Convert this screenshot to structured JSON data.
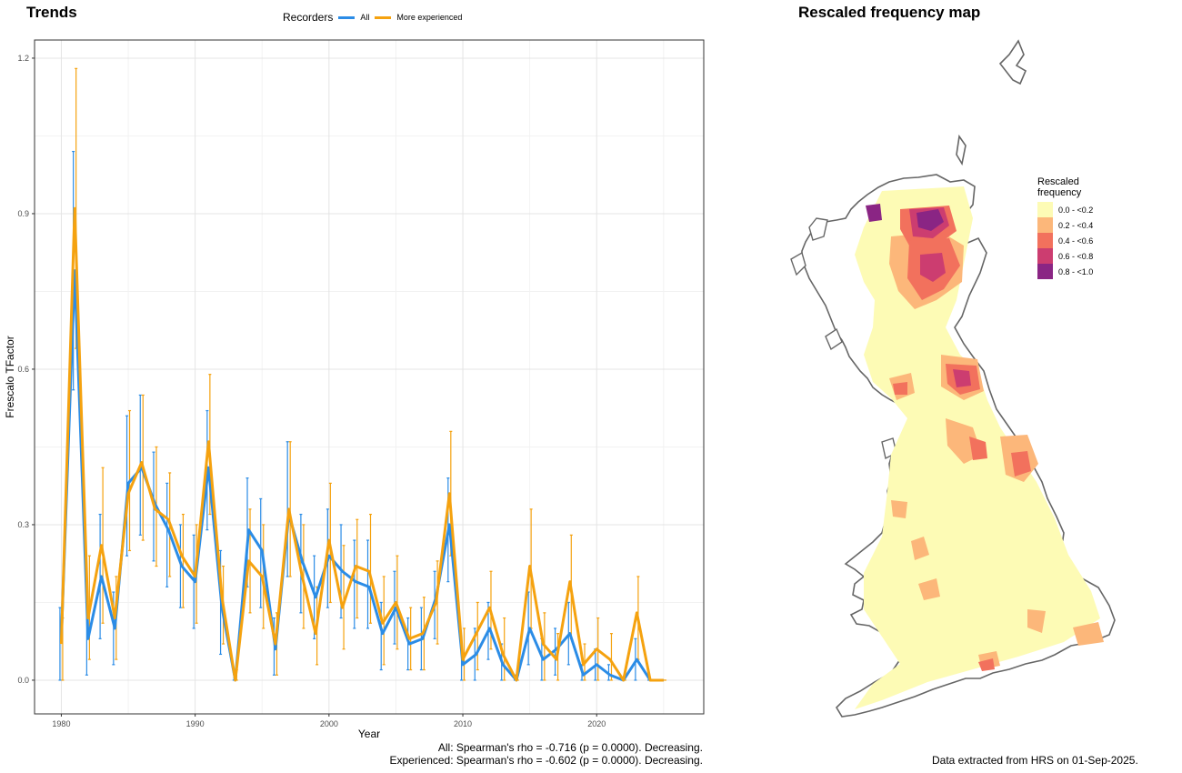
{
  "trends": {
    "title": "Trends",
    "legend_title": "Recorders",
    "stats_line1": "All: Spearman's rho = -0.716 (p = 0.0000). Decreasing.",
    "stats_line2": "Experienced: Spearman's rho = -0.602 (p = 0.0000). Decreasing."
  },
  "chart_data": {
    "type": "line",
    "xlabel": "Year",
    "ylabel": "Frescalo TFactor",
    "xlim": [
      1978,
      2028
    ],
    "ylim": [
      -0.065,
      1.235
    ],
    "x_ticks": [
      1980,
      1990,
      2000,
      2010,
      2020
    ],
    "y_ticks": [
      0.0,
      0.3,
      0.6,
      0.9,
      1.2
    ],
    "y_tick_labels": [
      "0.0",
      "0.3",
      "0.6",
      "0.9",
      "1.2"
    ],
    "grid": true,
    "legend_position": "top",
    "x": [
      1980,
      1981,
      1982,
      1983,
      1984,
      1985,
      1986,
      1987,
      1988,
      1989,
      1990,
      1991,
      1992,
      1993,
      1994,
      1995,
      1996,
      1997,
      1998,
      1999,
      2000,
      2001,
      2002,
      2003,
      2004,
      2005,
      2006,
      2007,
      2008,
      2009,
      2010,
      2011,
      2012,
      2013,
      2014,
      2015,
      2016,
      2017,
      2018,
      2019,
      2020,
      2021,
      2022,
      2023,
      2024,
      2025
    ],
    "series": [
      {
        "name": "All",
        "color": "#2b8ce6",
        "values": [
          0.08,
          0.79,
          0.08,
          0.2,
          0.1,
          0.38,
          0.41,
          0.34,
          0.29,
          0.22,
          0.19,
          0.41,
          0.14,
          0.0,
          0.29,
          0.25,
          0.06,
          0.32,
          0.23,
          0.16,
          0.24,
          0.21,
          0.19,
          0.18,
          0.09,
          0.14,
          0.07,
          0.08,
          0.16,
          0.3,
          0.03,
          0.05,
          0.1,
          0.03,
          0.0,
          0.1,
          0.04,
          0.06,
          0.09,
          0.01,
          0.03,
          0.01,
          0.0,
          0.04,
          0.0,
          0.0
        ],
        "lower": [
          0.0,
          0.56,
          0.01,
          0.08,
          0.03,
          0.24,
          0.28,
          0.23,
          0.18,
          0.14,
          0.1,
          0.29,
          0.05,
          0.0,
          0.18,
          0.14,
          0.01,
          0.2,
          0.13,
          0.08,
          0.14,
          0.12,
          0.1,
          0.1,
          0.02,
          0.07,
          0.02,
          0.02,
          0.08,
          0.19,
          0.0,
          0.0,
          0.04,
          0.0,
          0.0,
          0.03,
          0.0,
          0.01,
          0.03,
          0.0,
          0.0,
          0.0,
          0.0,
          0.0,
          0.0,
          0.0
        ],
        "upper": [
          0.14,
          1.02,
          0.15,
          0.32,
          0.17,
          0.51,
          0.55,
          0.44,
          0.38,
          0.3,
          0.28,
          0.52,
          0.25,
          0.02,
          0.39,
          0.35,
          0.12,
          0.46,
          0.32,
          0.24,
          0.33,
          0.3,
          0.27,
          0.27,
          0.15,
          0.21,
          0.12,
          0.14,
          0.21,
          0.39,
          0.07,
          0.1,
          0.15,
          0.07,
          0.01,
          0.17,
          0.08,
          0.1,
          0.15,
          0.03,
          0.06,
          0.03,
          0.0,
          0.08,
          0.0,
          0.0
        ]
      },
      {
        "name": "More experienced",
        "color": "#f5a20f",
        "values": [
          0.07,
          0.91,
          0.12,
          0.26,
          0.12,
          0.36,
          0.42,
          0.33,
          0.31,
          0.24,
          0.2,
          0.46,
          0.16,
          0.0,
          0.23,
          0.2,
          0.07,
          0.33,
          0.2,
          0.09,
          0.27,
          0.14,
          0.22,
          0.21,
          0.11,
          0.15,
          0.08,
          0.09,
          0.15,
          0.36,
          0.04,
          0.09,
          0.14,
          0.05,
          0.0,
          0.22,
          0.07,
          0.04,
          0.19,
          0.03,
          0.06,
          0.04,
          0.0,
          0.13,
          0.0,
          0.0
        ],
        "lower": [
          0.0,
          0.64,
          0.04,
          0.11,
          0.04,
          0.25,
          0.27,
          0.22,
          0.2,
          0.14,
          0.11,
          0.32,
          0.07,
          0.0,
          0.13,
          0.1,
          0.01,
          0.2,
          0.1,
          0.03,
          0.15,
          0.06,
          0.12,
          0.11,
          0.03,
          0.06,
          0.02,
          0.02,
          0.07,
          0.24,
          0.0,
          0.02,
          0.06,
          0.0,
          0.0,
          0.1,
          0.0,
          0.0,
          0.08,
          0.0,
          0.0,
          0.0,
          0.0,
          0.04,
          0.0,
          0.0
        ],
        "upper": [
          0.12,
          1.18,
          0.24,
          0.41,
          0.2,
          0.52,
          0.55,
          0.45,
          0.4,
          0.32,
          0.3,
          0.59,
          0.22,
          0.02,
          0.33,
          0.3,
          0.13,
          0.46,
          0.3,
          0.18,
          0.38,
          0.26,
          0.31,
          0.32,
          0.2,
          0.24,
          0.14,
          0.16,
          0.23,
          0.48,
          0.1,
          0.15,
          0.21,
          0.12,
          0.01,
          0.33,
          0.13,
          0.09,
          0.28,
          0.07,
          0.12,
          0.09,
          0.0,
          0.2,
          0.0,
          0.0
        ]
      }
    ]
  },
  "map": {
    "title": "Rescaled frequency map",
    "legend_title_line1": "Rescaled",
    "legend_title_line2": "frequency",
    "classes": [
      {
        "label": "0.0 - <0.2",
        "color": "#fdfbb5"
      },
      {
        "label": "0.2 - <0.4",
        "color": "#fcb77a"
      },
      {
        "label": "0.4 - <0.6",
        "color": "#f2715d"
      },
      {
        "label": "0.6 - <0.8",
        "color": "#cc3d70"
      },
      {
        "label": "0.8 - <1.0",
        "color": "#8a2584"
      }
    ],
    "credit": "Data extracted from HRS on 01-Sep-2025."
  }
}
